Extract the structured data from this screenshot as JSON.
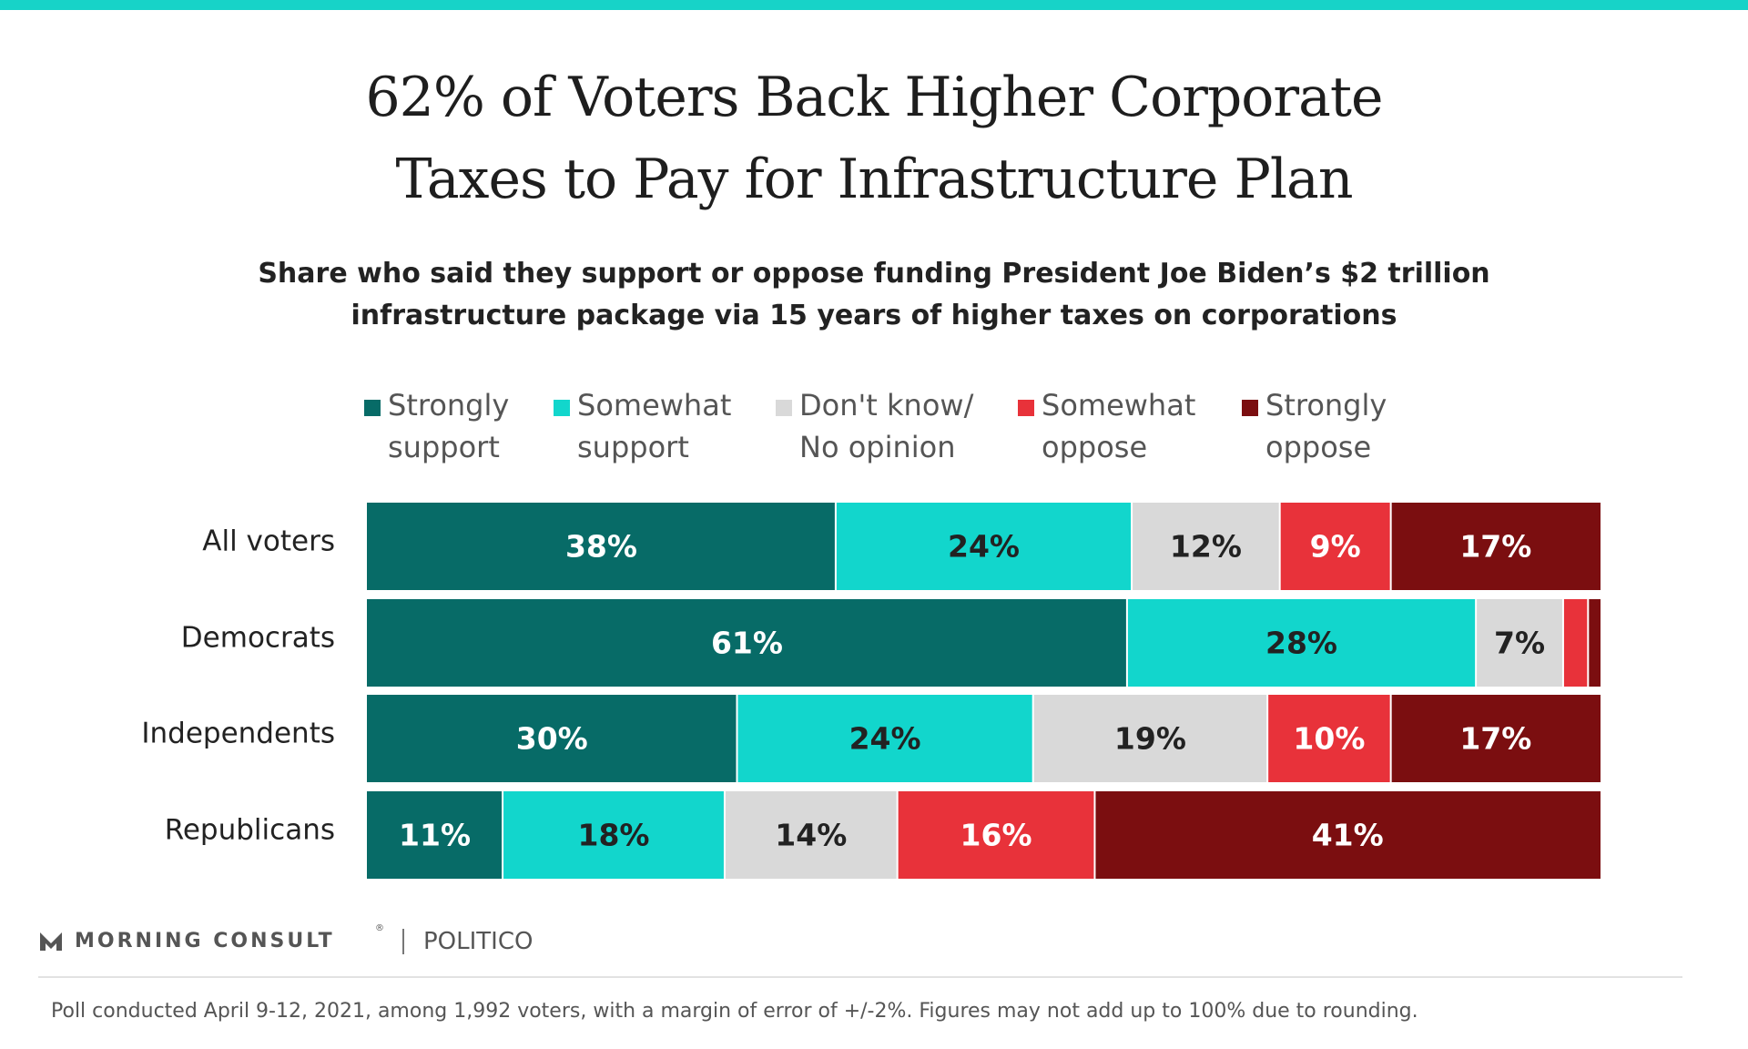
{
  "title_lines": [
    "62% of Voters Back Higher Corporate",
    "Taxes to Pay for Infrastructure Plan"
  ],
  "subtitle_lines": [
    "Share who said they support or oppose funding President Joe Biden’s $2 trillion",
    "infrastructure package via 15 years of higher taxes on corporations"
  ],
  "colors": {
    "accent_bar": "#17d3c8",
    "strongly_support": "#076b67",
    "somewhat_support": "#12d6cc",
    "dont_know": "#d9d9d9",
    "somewhat_oppose": "#e8323a",
    "strongly_oppose": "#7b0e10"
  },
  "chart_data": {
    "type": "bar",
    "orientation": "horizontal",
    "stacked": true,
    "categories": [
      "All voters",
      "Democrats",
      "Independents",
      "Republicans"
    ],
    "series": [
      {
        "name": "Strongly support",
        "legend_lines": [
          "Strongly",
          "support"
        ],
        "color": "#076b67",
        "label_color": "#ffffff",
        "values": [
          38,
          61,
          30,
          11
        ],
        "labels": [
          "38%",
          "61%",
          "30%",
          "11%"
        ]
      },
      {
        "name": "Somewhat support",
        "legend_lines": [
          "Somewhat",
          "support"
        ],
        "color": "#12d6cc",
        "label_color": "#222222",
        "values": [
          24,
          28,
          24,
          18
        ],
        "labels": [
          "24%",
          "28%",
          "24%",
          "18%"
        ]
      },
      {
        "name": "Don't know/ No opinion",
        "legend_lines": [
          "Don't know/",
          "No opinion"
        ],
        "color": "#d9d9d9",
        "label_color": "#222222",
        "values": [
          12,
          7,
          19,
          14
        ],
        "labels": [
          "12%",
          "7%",
          "19%",
          "14%"
        ]
      },
      {
        "name": "Somewhat oppose",
        "legend_lines": [
          "Somewhat",
          "oppose"
        ],
        "color": "#e8323a",
        "label_color": "#ffffff",
        "values": [
          9,
          2,
          10,
          16
        ],
        "labels": [
          "9%",
          "",
          "10%",
          "16%"
        ]
      },
      {
        "name": "Strongly oppose",
        "legend_lines": [
          "Strongly",
          "oppose"
        ],
        "color": "#7b0e10",
        "label_color": "#ffffff",
        "values": [
          17,
          1,
          17,
          41
        ],
        "labels": [
          "17%",
          "",
          "17%",
          "41%"
        ]
      }
    ],
    "xlim": [
      0,
      100
    ],
    "legend_position": "top",
    "grid": false
  },
  "branding": {
    "morning_consult": "MORNING CONSULT",
    "registered_mark": "®",
    "politico": "POLITICO"
  },
  "footnote": "Poll conducted April 9-12, 2021, among 1,992 voters, with a margin of error of +/-2%. Figures may not add up to 100% due to rounding."
}
